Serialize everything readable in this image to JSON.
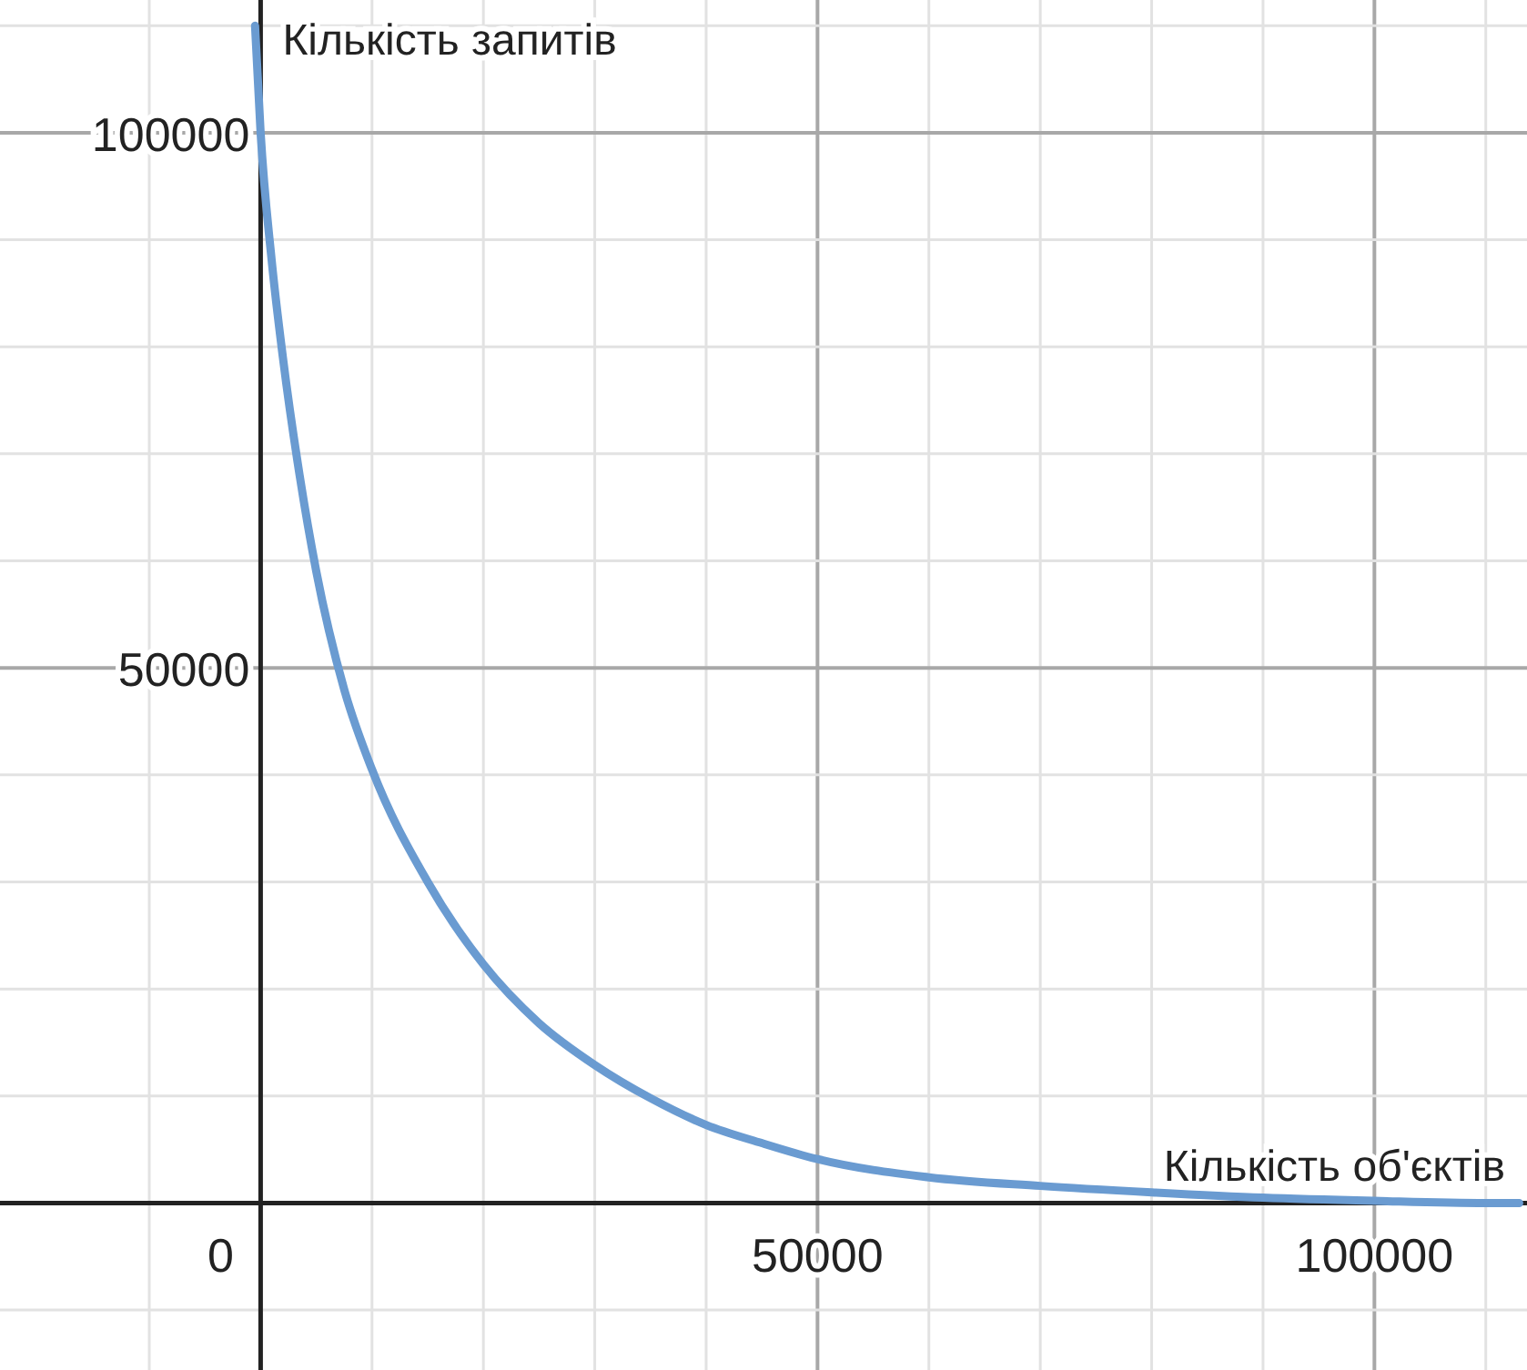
{
  "chart_data": {
    "type": "line",
    "xlabel": "Кількість об'єктів",
    "ylabel": "Кількість запитів",
    "x": [
      -500,
      0,
      1000,
      2000,
      3500,
      5000,
      7500,
      10000,
      15000,
      20000,
      25000,
      30000,
      35000,
      40000,
      45000,
      50000,
      60000,
      70000,
      80000,
      90000,
      100000,
      110000,
      113000
    ],
    "series": [
      {
        "color": "#6a9bd1",
        "values": [
          110000,
          100000,
          88000,
          79000,
          68000,
          59000,
          48000,
          40500,
          30000,
          22300,
          16800,
          12900,
          9800,
          7300,
          5600,
          4100,
          2400,
          1600,
          1000,
          500,
          200,
          0,
          0
        ]
      }
    ],
    "xlim": [
      -23400,
      113700
    ],
    "ylim": [
      -15600,
      112400
    ],
    "xticks": [
      {
        "value": -10000,
        "label": null
      },
      0,
      {
        "value": 10000,
        "label": null
      },
      {
        "value": 20000,
        "label": null
      },
      {
        "value": 30000,
        "label": null
      },
      {
        "value": 40000,
        "label": null
      },
      50000,
      {
        "value": 60000,
        "label": null
      },
      {
        "value": 70000,
        "label": null
      },
      {
        "value": 80000,
        "label": null
      },
      {
        "value": 90000,
        "label": null
      },
      100000,
      {
        "value": 110000,
        "label": null
      }
    ],
    "yticks": [
      {
        "value": -10000,
        "label": null
      },
      {
        "value": 0,
        "label": null
      },
      {
        "value": 10000,
        "label": null
      },
      {
        "value": 20000,
        "label": null
      },
      {
        "value": 30000,
        "label": null
      },
      {
        "value": 40000,
        "label": null
      },
      50000,
      {
        "value": 60000,
        "label": null
      },
      {
        "value": 70000,
        "label": null
      },
      {
        "value": 80000,
        "label": null
      },
      {
        "value": 90000,
        "label": null
      },
      100000,
      {
        "value": 110000,
        "label": null
      }
    ],
    "grid": true,
    "marker": "none",
    "line_style": "solid"
  }
}
